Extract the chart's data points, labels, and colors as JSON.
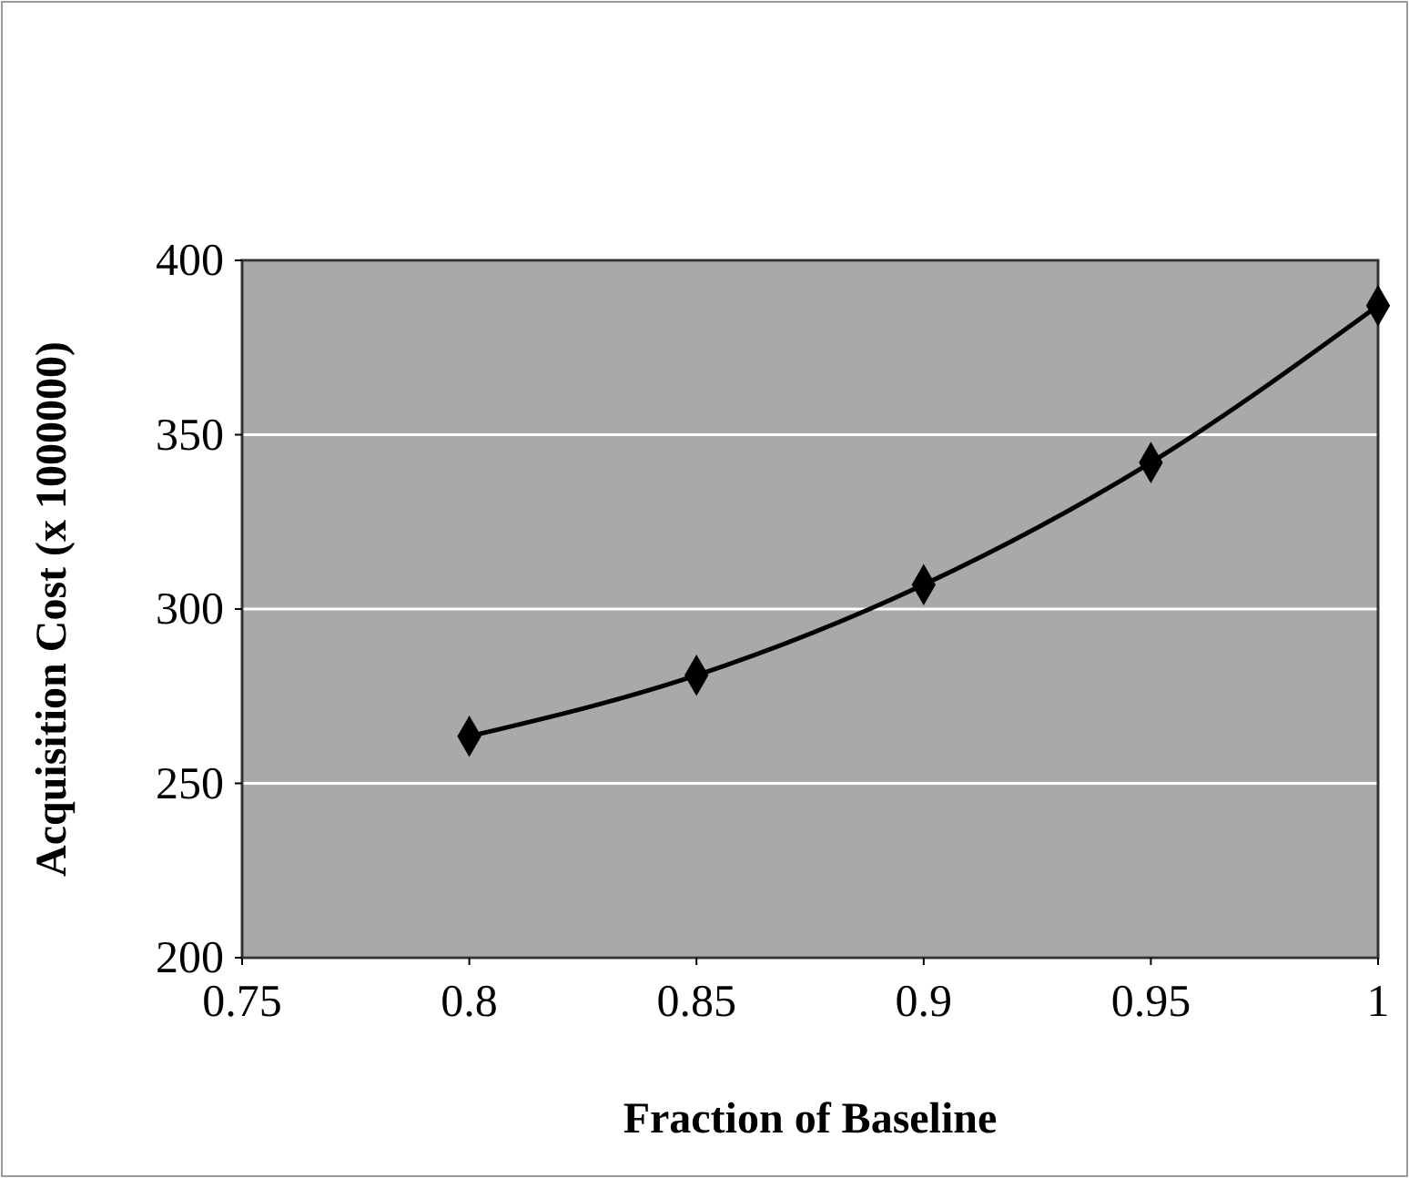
{
  "chart_data": {
    "type": "line",
    "xlabel": "Fraction of Baseline",
    "ylabel": "Acquisition Cost (x 1000000)",
    "x": [
      0.8,
      0.85,
      0.9,
      0.95,
      1
    ],
    "series": [
      {
        "color": "#000000",
        "values": [
          263.5,
          281,
          307,
          342,
          387
        ]
      }
    ],
    "xlim": [
      0.75,
      1
    ],
    "xticks": [
      0.75,
      0.8,
      0.85,
      0.9,
      0.95,
      1
    ],
    "ylim": [
      200,
      400
    ],
    "yticks": [
      200,
      250,
      300,
      350,
      400
    ],
    "grid": "y",
    "marker": "diamond",
    "line_style": "solid"
  }
}
